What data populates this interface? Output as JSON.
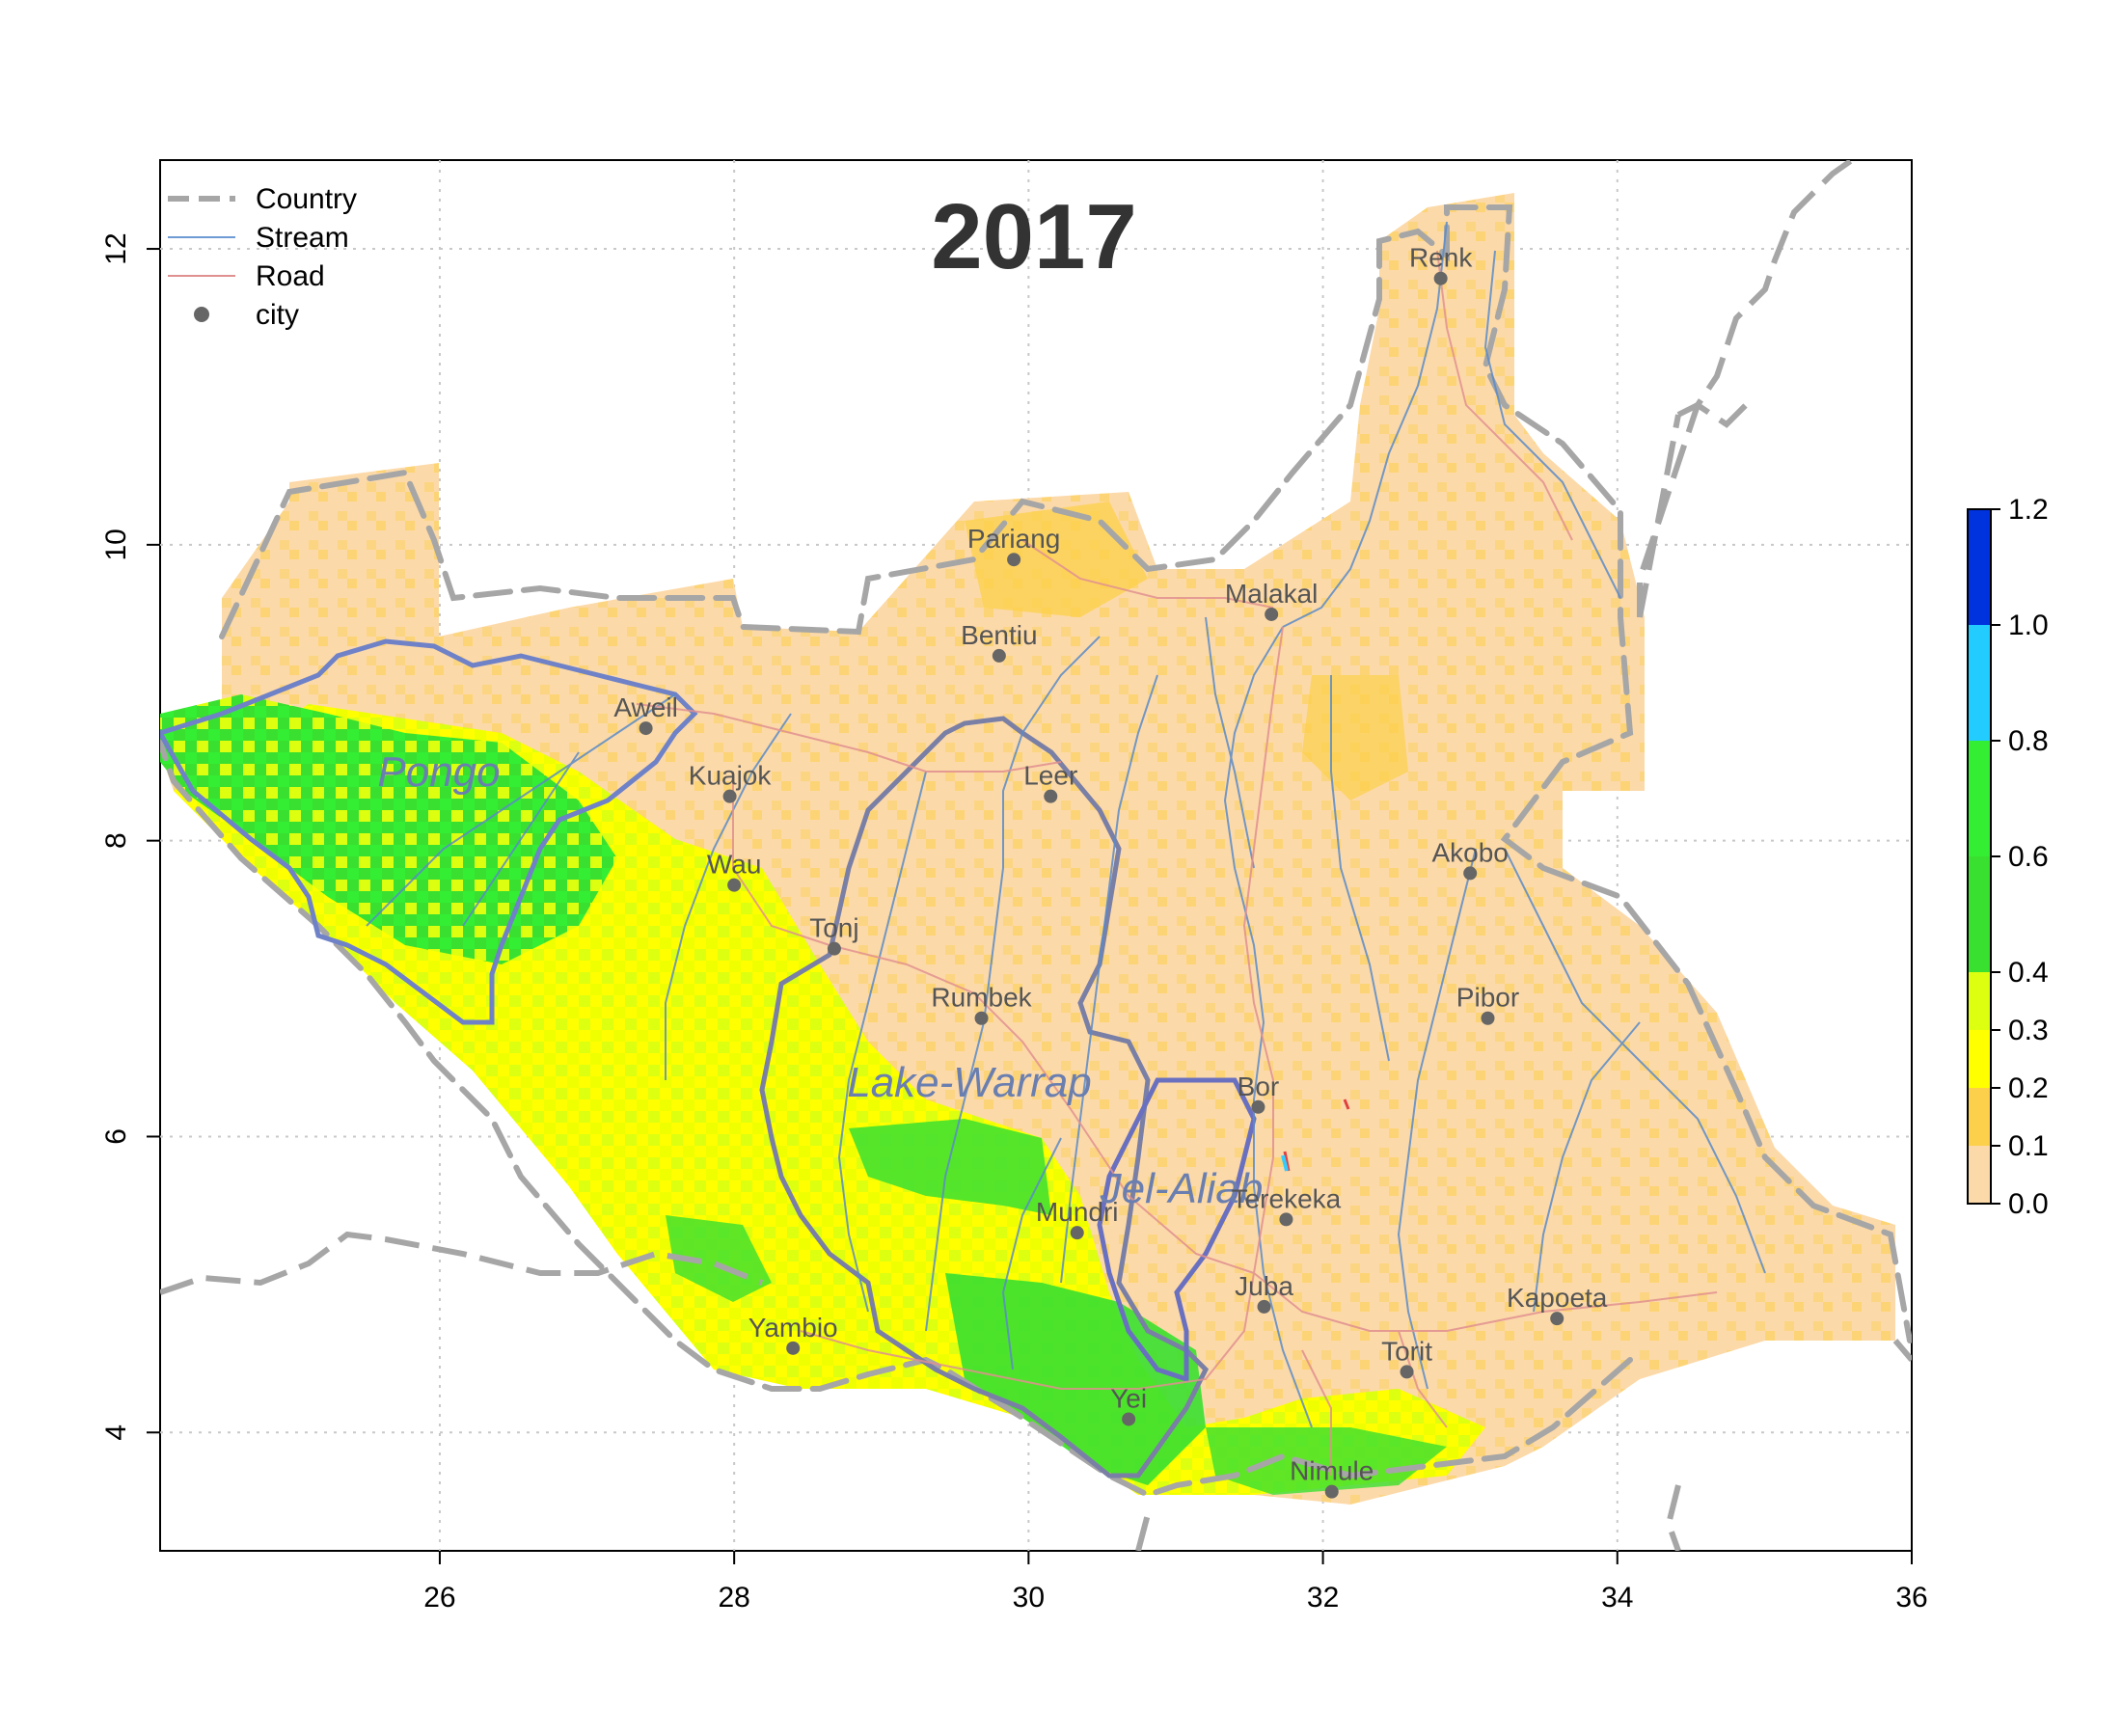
{
  "map": {
    "title": "2017",
    "x_ticks": [
      "26",
      "28",
      "30",
      "32",
      "34",
      "36"
    ],
    "y_ticks": [
      "4",
      "6",
      "8",
      "10",
      "12"
    ],
    "xlim": [
      24.1,
      36
    ],
    "ylim": [
      3.2,
      12.6
    ],
    "grid": true,
    "legend": {
      "position": "top-left",
      "items": [
        {
          "label": "Country",
          "style": "dashed",
          "color": "#a6a6a6"
        },
        {
          "label": "Stream",
          "style": "line",
          "color": "#6f9bd4"
        },
        {
          "label": "Road",
          "style": "line",
          "color": "#e09090"
        },
        {
          "label": "city",
          "style": "point",
          "color": "#666666"
        }
      ]
    },
    "colorbar": {
      "labels": [
        "1.2",
        "1.0",
        "0.8",
        "0.6",
        "0.4",
        "0.3",
        "0.2",
        "0.1",
        "0.0"
      ],
      "breaks": [
        0.0,
        0.1,
        0.2,
        0.3,
        0.4,
        0.6,
        0.8,
        1.0,
        1.2
      ],
      "colors": [
        "#fcd9a8",
        "#fcd04a",
        "#ffff00",
        "#ddff10",
        "#3ae030",
        "#33ee33",
        "#22ccff",
        "#0033dd"
      ]
    },
    "cities": [
      {
        "name": "Renk",
        "lon": 32.8,
        "lat": 11.8
      },
      {
        "name": "Pariang",
        "lon": 29.9,
        "lat": 9.9
      },
      {
        "name": "Malakal",
        "lon": 31.65,
        "lat": 9.53
      },
      {
        "name": "Bentiu",
        "lon": 29.8,
        "lat": 9.25
      },
      {
        "name": "Aweil",
        "lon": 27.4,
        "lat": 8.76
      },
      {
        "name": "Kuajok",
        "lon": 27.97,
        "lat": 8.3
      },
      {
        "name": "Leer",
        "lon": 30.15,
        "lat": 8.3
      },
      {
        "name": "Wau",
        "lon": 28.0,
        "lat": 7.7
      },
      {
        "name": "Akobo",
        "lon": 33.0,
        "lat": 7.78
      },
      {
        "name": "Tonj",
        "lon": 28.68,
        "lat": 7.27
      },
      {
        "name": "Rumbek",
        "lon": 29.68,
        "lat": 6.8
      },
      {
        "name": "Pibor",
        "lon": 33.12,
        "lat": 6.8
      },
      {
        "name": "Bor",
        "lon": 31.56,
        "lat": 6.2
      },
      {
        "name": "Terekeka",
        "lon": 31.75,
        "lat": 5.44
      },
      {
        "name": "Mundri",
        "lon": 30.33,
        "lat": 5.35
      },
      {
        "name": "Juba",
        "lon": 31.6,
        "lat": 4.85
      },
      {
        "name": "Kapoeta",
        "lon": 33.59,
        "lat": 4.77
      },
      {
        "name": "Yambio",
        "lon": 28.4,
        "lat": 4.57
      },
      {
        "name": "Torit",
        "lon": 32.57,
        "lat": 4.41
      },
      {
        "name": "Yei",
        "lon": 30.68,
        "lat": 4.09
      },
      {
        "name": "Nimule",
        "lon": 32.06,
        "lat": 3.6
      }
    ],
    "basins": [
      {
        "name": "Pongo"
      },
      {
        "name": "Lake-Warrap"
      },
      {
        "name": "Jel-Aliab"
      }
    ]
  }
}
